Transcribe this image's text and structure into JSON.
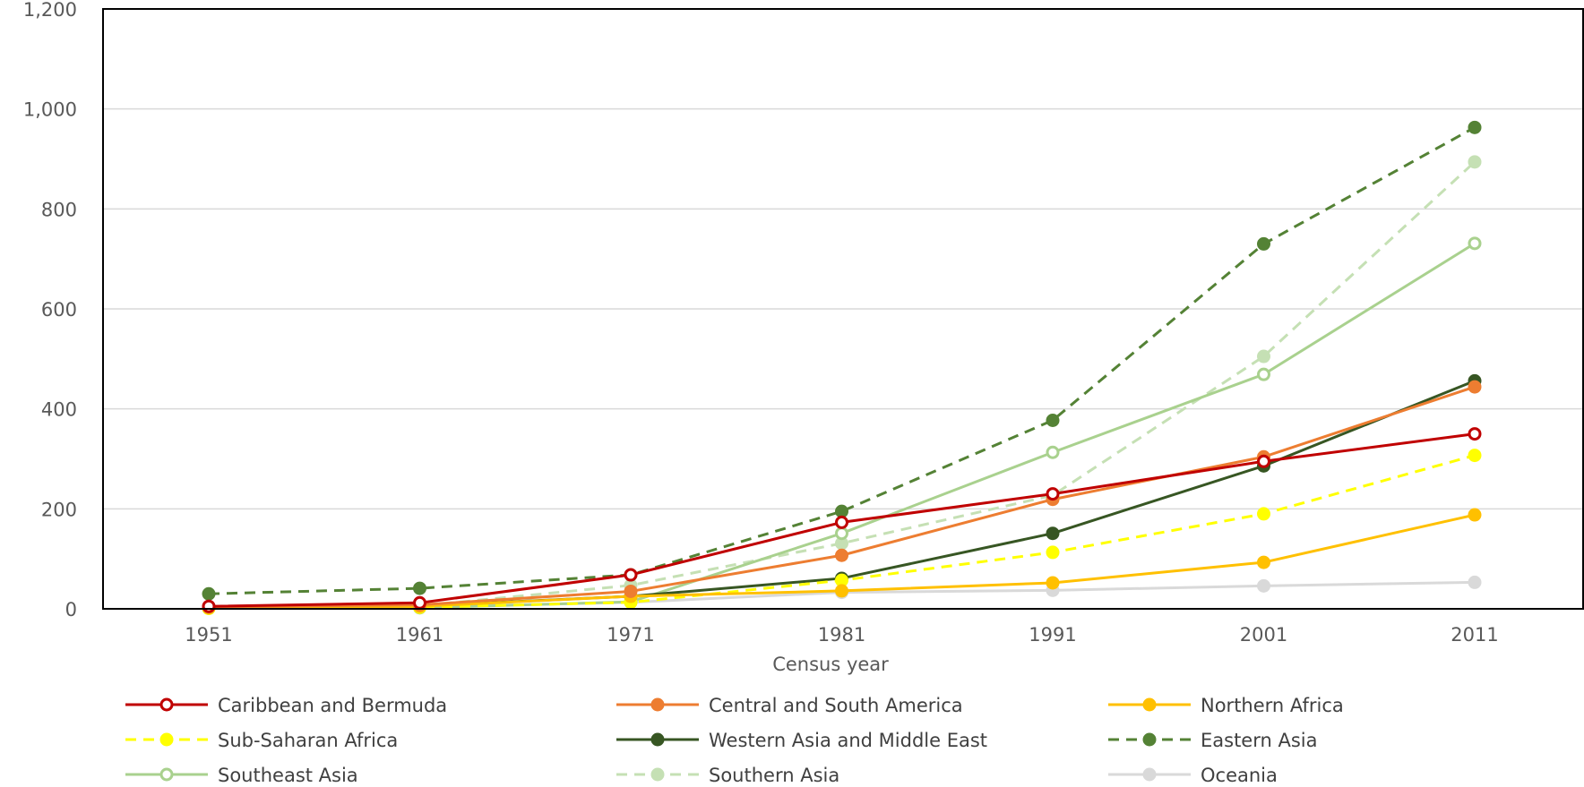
{
  "chart_data": {
    "type": "line",
    "title": "",
    "xlabel": "Census year",
    "ylabel": "",
    "x": [
      "1951",
      "1961",
      "1971",
      "1981",
      "1991",
      "2001",
      "2011"
    ],
    "y_ticks": [
      "0",
      "200",
      "400",
      "600",
      "800",
      "1,000",
      "1,200"
    ],
    "ylim": [
      0,
      1200
    ],
    "grid": true,
    "legend_position": "bottom",
    "series": [
      {
        "name": "Caribbean and Bermuda",
        "color": "#c00000",
        "dashed": false,
        "marker": "open-circle",
        "values": [
          5,
          12,
          68,
          173,
          230,
          295,
          350
        ]
      },
      {
        "name": "Central and South America",
        "color": "#ed7d31",
        "dashed": false,
        "marker": "filled-circle",
        "values": [
          4,
          8,
          35,
          107,
          219,
          304,
          444
        ]
      },
      {
        "name": "Northern Africa",
        "color": "#ffc000",
        "dashed": false,
        "marker": "filled-circle",
        "values": [
          2,
          5,
          25,
          36,
          52,
          93,
          188
        ]
      },
      {
        "name": "Sub-Saharan Africa",
        "color": "#ffff00",
        "dashed": true,
        "marker": "filled-circle",
        "values": [
          1,
          3,
          13,
          57,
          113,
          190,
          307
        ]
      },
      {
        "name": "Western Asia and Middle East",
        "color": "#375623",
        "dashed": false,
        "marker": "filled-circle",
        "values": [
          3,
          6,
          25,
          61,
          151,
          286,
          456
        ]
      },
      {
        "name": "Eastern Asia",
        "color": "#548235",
        "dashed": true,
        "marker": "filled-circle",
        "values": [
          30,
          41,
          68,
          195,
          377,
          730,
          963
        ]
      },
      {
        "name": "Southeast Asia",
        "color": "#a9d18e",
        "dashed": false,
        "marker": "open-circle",
        "values": [
          1,
          2,
          14,
          151,
          313,
          469,
          731
        ]
      },
      {
        "name": "Southern Asia",
        "color": "#c5e0b4",
        "dashed": true,
        "marker": "filled-circle",
        "values": [
          3,
          6,
          47,
          131,
          227,
          505,
          894
        ]
      },
      {
        "name": "Oceania",
        "color": "#d9d9d9",
        "dashed": false,
        "marker": "filled-circle",
        "values": [
          2,
          4,
          13,
          33,
          37,
          46,
          53
        ]
      }
    ]
  }
}
